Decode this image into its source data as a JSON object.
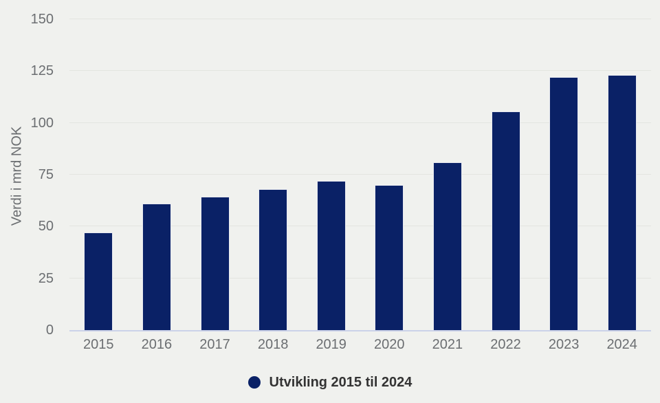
{
  "chart_data": {
    "type": "bar",
    "title": "",
    "categories": [
      "2015",
      "2016",
      "2017",
      "2018",
      "2019",
      "2020",
      "2021",
      "2022",
      "2023",
      "2024"
    ],
    "values": [
      47,
      61,
      64.5,
      68,
      72,
      70,
      81,
      105.5,
      122,
      123
    ],
    "series_name": "Utvikling 2015 til 2024",
    "xlabel": "",
    "ylabel": "Verdi i mrd NOK",
    "ylim": [
      0,
      150
    ],
    "yticks": [
      0,
      25,
      50,
      75,
      100,
      125,
      150
    ],
    "grid": true,
    "legend_position": "bottom-center",
    "colors": {
      "bar": "#0a2166",
      "background": "#f0f1ee",
      "gridline": "#e3e5e0",
      "axis_line": "#cbd2e9",
      "tick_label": "#6b6e71",
      "legend_text": "#333333"
    }
  }
}
